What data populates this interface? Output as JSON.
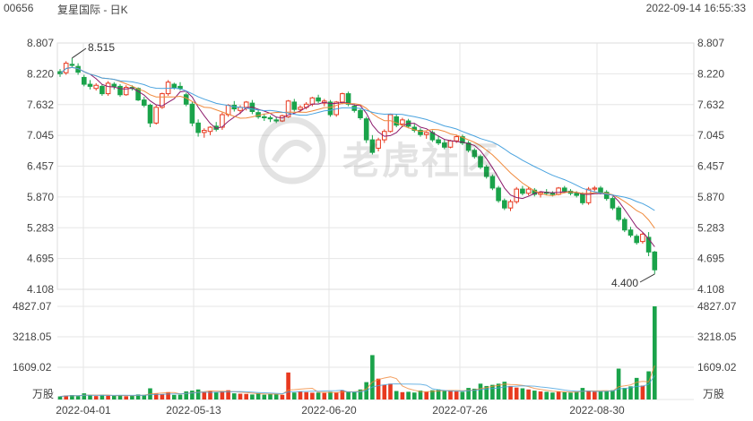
{
  "header": {
    "code": "00656",
    "name": "复星国际 - 日K",
    "datetime": "2022-09-14 16:55:33"
  },
  "watermark": {
    "text": "老虎社区"
  },
  "colors": {
    "up": "#e8391f",
    "down": "#1aa34a",
    "ma5": "#8b1a6b",
    "ma10": "#f08a3c",
    "ma20": "#4aa3df",
    "grid": "#e6e6e6",
    "axis_text": "#444444"
  },
  "chart_data": {
    "type": "candlestick",
    "price_axis": {
      "ticks": [
        "8.807",
        "8.220",
        "7.632",
        "7.045",
        "6.457",
        "5.870",
        "5.283",
        "4.695",
        "4.108"
      ],
      "ylim": [
        4.108,
        8.807
      ]
    },
    "volume_axis": {
      "ticks": [
        "4827.07",
        "3218.05",
        "1609.02"
      ],
      "unit": "万股",
      "ylim": [
        0,
        4827.07
      ]
    },
    "x_ticks": [
      "2022-04-01",
      "2022-05-13",
      "2022-06-20",
      "2022-07-26",
      "2022-08-30"
    ],
    "annotations": {
      "high": "8.515",
      "low": "4.400"
    },
    "ohlc": [
      [
        8.26,
        8.31,
        8.16,
        8.22
      ],
      [
        8.24,
        8.46,
        8.2,
        8.42
      ],
      [
        8.4,
        8.52,
        8.35,
        8.38
      ],
      [
        8.36,
        8.42,
        8.2,
        8.25
      ],
      [
        8.15,
        8.2,
        7.98,
        8.02
      ],
      [
        8.02,
        8.1,
        7.92,
        7.98
      ],
      [
        7.94,
        8.04,
        7.9,
        8.0
      ],
      [
        7.98,
        8.02,
        7.8,
        7.84
      ],
      [
        7.84,
        8.08,
        7.8,
        8.04
      ],
      [
        8.02,
        8.06,
        7.92,
        7.98
      ],
      [
        7.98,
        8.02,
        7.78,
        7.82
      ],
      [
        7.82,
        8.0,
        7.8,
        7.96
      ],
      [
        7.96,
        8.0,
        7.9,
        7.94
      ],
      [
        7.94,
        7.96,
        7.7,
        7.72
      ],
      [
        7.72,
        7.78,
        7.58,
        7.62
      ],
      [
        7.62,
        7.65,
        7.2,
        7.28
      ],
      [
        7.28,
        7.62,
        7.25,
        7.58
      ],
      [
        7.58,
        7.86,
        7.55,
        7.84
      ],
      [
        7.84,
        8.1,
        7.8,
        8.06
      ],
      [
        8.02,
        8.05,
        7.92,
        7.96
      ],
      [
        7.98,
        8.06,
        7.9,
        7.94
      ],
      [
        7.82,
        7.86,
        7.6,
        7.64
      ],
      [
        7.64,
        7.68,
        7.22,
        7.28
      ],
      [
        7.28,
        7.35,
        7.02,
        7.1
      ],
      [
        7.1,
        7.18,
        7.0,
        7.14
      ],
      [
        7.12,
        7.22,
        7.05,
        7.2
      ],
      [
        7.22,
        7.3,
        7.12,
        7.16
      ],
      [
        7.2,
        7.48,
        7.15,
        7.44
      ],
      [
        7.44,
        7.64,
        7.4,
        7.62
      ],
      [
        7.62,
        7.7,
        7.5,
        7.55
      ],
      [
        7.52,
        7.62,
        7.45,
        7.58
      ],
      [
        7.58,
        7.7,
        7.52,
        7.68
      ],
      [
        7.66,
        7.72,
        7.45,
        7.5
      ],
      [
        7.48,
        7.54,
        7.36,
        7.4
      ],
      [
        7.4,
        7.46,
        7.32,
        7.38
      ],
      [
        7.38,
        7.42,
        7.3,
        7.36
      ],
      [
        7.34,
        7.4,
        7.28,
        7.32
      ],
      [
        7.32,
        7.44,
        7.3,
        7.42
      ],
      [
        7.4,
        7.72,
        7.38,
        7.7
      ],
      [
        7.68,
        7.74,
        7.5,
        7.54
      ],
      [
        7.54,
        7.62,
        7.48,
        7.58
      ],
      [
        7.58,
        7.68,
        7.54,
        7.64
      ],
      [
        7.64,
        7.78,
        7.6,
        7.76
      ],
      [
        7.76,
        7.82,
        7.66,
        7.7
      ],
      [
        7.66,
        7.74,
        7.6,
        7.7
      ],
      [
        7.68,
        7.72,
        7.4,
        7.44
      ],
      [
        7.44,
        7.7,
        7.4,
        7.68
      ],
      [
        7.68,
        7.86,
        7.64,
        7.84
      ],
      [
        7.84,
        7.88,
        7.6,
        7.64
      ],
      [
        7.6,
        7.64,
        7.48,
        7.52
      ],
      [
        7.52,
        7.56,
        7.34,
        7.38
      ],
      [
        7.36,
        7.4,
        6.9,
        6.96
      ],
      [
        6.96,
        7.05,
        6.68,
        6.72
      ],
      [
        6.8,
        7.0,
        6.74,
        6.96
      ],
      [
        6.96,
        7.16,
        6.9,
        7.12
      ],
      [
        7.12,
        7.46,
        7.1,
        7.44
      ],
      [
        7.4,
        7.44,
        7.2,
        7.24
      ],
      [
        7.26,
        7.38,
        7.2,
        7.34
      ],
      [
        7.32,
        7.36,
        7.18,
        7.22
      ],
      [
        7.2,
        7.26,
        7.1,
        7.14
      ],
      [
        7.14,
        7.18,
        7.02,
        7.06
      ],
      [
        7.06,
        7.12,
        6.98,
        7.1
      ],
      [
        7.1,
        7.14,
        6.92,
        6.96
      ],
      [
        6.96,
        7.04,
        6.86,
        6.9
      ],
      [
        6.9,
        6.96,
        6.78,
        6.82
      ],
      [
        6.82,
        6.96,
        6.8,
        6.94
      ],
      [
        6.94,
        7.06,
        6.9,
        7.02
      ],
      [
        7.02,
        7.06,
        6.86,
        6.9
      ],
      [
        6.9,
        6.94,
        6.72,
        6.76
      ],
      [
        6.76,
        6.8,
        6.6,
        6.64
      ],
      [
        6.64,
        6.68,
        6.4,
        6.44
      ],
      [
        6.44,
        6.48,
        6.22,
        6.26
      ],
      [
        6.26,
        6.3,
        6.0,
        6.04
      ],
      [
        6.04,
        6.08,
        5.76,
        5.8
      ],
      [
        5.8,
        5.84,
        5.62,
        5.66
      ],
      [
        5.66,
        5.82,
        5.6,
        5.78
      ],
      [
        5.78,
        6.06,
        5.74,
        6.02
      ],
      [
        6.02,
        6.08,
        5.9,
        5.94
      ],
      [
        5.94,
        6.06,
        5.9,
        6.02
      ],
      [
        6.0,
        6.04,
        5.88,
        5.92
      ],
      [
        5.92,
        5.98,
        5.86,
        5.96
      ],
      [
        5.96,
        6.02,
        5.9,
        5.94
      ],
      [
        5.94,
        5.98,
        5.88,
        5.92
      ],
      [
        5.92,
        6.06,
        5.9,
        6.04
      ],
      [
        6.04,
        6.08,
        5.94,
        5.98
      ],
      [
        5.98,
        6.02,
        5.9,
        5.94
      ],
      [
        5.94,
        5.98,
        5.86,
        5.9
      ],
      [
        5.92,
        5.96,
        5.72,
        5.76
      ],
      [
        5.76,
        6.06,
        5.72,
        6.02
      ],
      [
        6.02,
        6.08,
        5.98,
        6.04
      ],
      [
        6.04,
        6.08,
        5.92,
        5.96
      ],
      [
        5.96,
        6.0,
        5.8,
        5.84
      ],
      [
        5.84,
        5.88,
        5.62,
        5.66
      ],
      [
        5.66,
        5.7,
        5.4,
        5.44
      ],
      [
        5.44,
        5.48,
        5.2,
        5.24
      ],
      [
        5.24,
        5.3,
        5.1,
        5.14
      ],
      [
        5.12,
        5.16,
        4.96,
        5.0
      ],
      [
        5.02,
        5.2,
        4.98,
        5.16
      ],
      [
        5.1,
        5.2,
        4.74,
        4.82
      ],
      [
        4.82,
        4.84,
        4.4,
        4.48
      ]
    ],
    "volume": [
      160,
      210,
      230,
      180,
      320,
      220,
      180,
      240,
      200,
      190,
      230,
      170,
      200,
      260,
      240,
      580,
      300,
      280,
      380,
      240,
      250,
      420,
      460,
      520,
      380,
      440,
      380,
      420,
      480,
      320,
      300,
      290,
      260,
      330,
      250,
      290,
      270,
      240,
      1400,
      360,
      420,
      380,
      350,
      360,
      340,
      400,
      360,
      480,
      420,
      380,
      520,
      900,
      2300,
      1080,
      760,
      820,
      440,
      380,
      400,
      360,
      460,
      400,
      480,
      520,
      440,
      480,
      420,
      400,
      600,
      560,
      820,
      700,
      760,
      820,
      920,
      700,
      620,
      580,
      520,
      460,
      420,
      400,
      360,
      420,
      380,
      360,
      400,
      600,
      460,
      400,
      420,
      420,
      480,
      1600,
      600,
      680,
      1120,
      720,
      1460,
      4827
    ]
  }
}
